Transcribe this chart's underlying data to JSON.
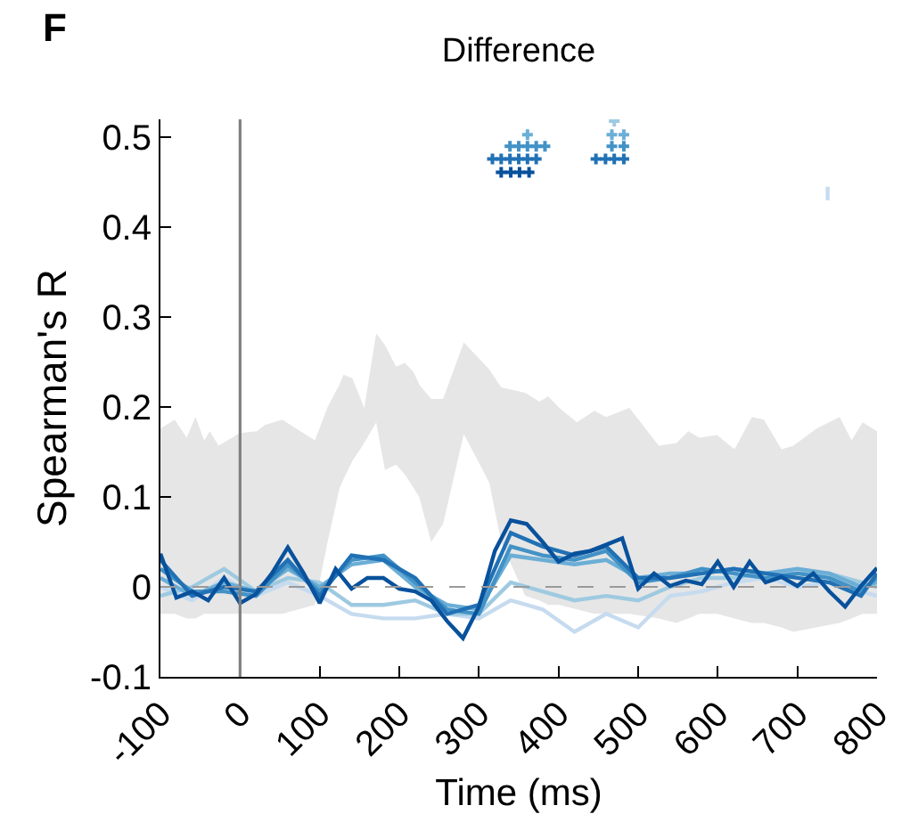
{
  "chart_data": {
    "type": "line",
    "title": "Difference",
    "xlabel": "Time (ms)",
    "ylabel": "Spearman's R",
    "annotations": [
      "F"
    ],
    "xlim": [
      -100,
      800
    ],
    "xticks": [
      -100,
      0,
      100,
      200,
      300,
      400,
      500,
      600,
      700,
      800
    ],
    "ylim": [
      -0.1,
      0.52
    ],
    "yticks": [
      -0.1,
      0,
      0.1,
      0.2,
      0.3,
      0.4,
      0.5
    ],
    "grid": false,
    "line_style": "solid",
    "ref_lines": [
      {
        "axis": "x",
        "value": 0,
        "color": "#808080",
        "line_style": "solid"
      },
      {
        "axis": "y",
        "value": 0,
        "color": "#9a9a9a",
        "line_style": "dashed"
      }
    ],
    "series": [
      {
        "type": "line",
        "color": "#e6e6e6",
        "values": [
          null,
          null,
          null,
          null,
          null,
          null,
          null,
          null,
          null,
          null,
          null,
          null,
          null,
          null,
          null,
          null,
          null,
          null,
          null,
          null,
          null,
          null,
          null,
          null,
          null,
          null,
          null,
          null,
          null,
          null,
          null,
          null,
          null,
          null,
          null,
          null,
          null,
          null,
          null,
          null,
          null,
          null,
          null,
          null,
          null,
          null,
          null,
          null,
          null,
          null,
          null,
          null
        ],
        "x": [
          -100,
          -82,
          -67,
          -56,
          -45,
          -38,
          -27,
          -1,
          21,
          31,
          53,
          94,
          110,
          125,
          130,
          141,
          156,
          171,
          182,
          196,
          207,
          218,
          225,
          240,
          255,
          281,
          299,
          313,
          328,
          358,
          376,
          387,
          401,
          423,
          445,
          460,
          489,
          526,
          548,
          563,
          577,
          599,
          621,
          643,
          658,
          680,
          695,
          724,
          753,
          768,
          782,
          800
        ],
        "upper": [
          0.176,
          0.186,
          0.166,
          0.189,
          0.163,
          0.173,
          0.157,
          0.171,
          0.173,
          0.18,
          0.186,
          0.163,
          0.2,
          0.225,
          0.236,
          0.232,
          0.199,
          0.282,
          0.269,
          0.245,
          0.249,
          0.239,
          0.225,
          0.209,
          0.209,
          0.272,
          0.255,
          0.242,
          0.222,
          0.216,
          0.206,
          0.212,
          0.199,
          0.183,
          0.196,
          0.189,
          0.199,
          0.157,
          0.16,
          0.173,
          0.166,
          0.169,
          0.153,
          0.189,
          0.186,
          0.153,
          0.157,
          0.176,
          0.189,
          0.163,
          0.183,
          0.173
        ],
        "lower": [
          -0.03,
          -0.03,
          -0.035,
          -0.035,
          -0.03,
          -0.03,
          -0.03,
          -0.03,
          -0.03,
          -0.03,
          -0.03,
          -0.02,
          0.05,
          0.11,
          0.12,
          0.14,
          0.16,
          0.183,
          0.13,
          0.136,
          0.125,
          0.11,
          0.1,
          0.05,
          0.07,
          0.17,
          0.14,
          0.116,
          0.05,
          -0.01,
          -0.015,
          -0.02,
          -0.02,
          -0.025,
          -0.03,
          -0.03,
          -0.03,
          -0.035,
          -0.04,
          -0.035,
          -0.03,
          -0.03,
          -0.035,
          -0.04,
          -0.04,
          -0.045,
          -0.05,
          -0.045,
          -0.04,
          -0.035,
          -0.03,
          -0.03
        ]
      },
      {
        "type": "line",
        "color": "#c6dbef",
        "x": [
          -100,
          -60,
          -20,
          20,
          60,
          100,
          140,
          180,
          220,
          260,
          300,
          340,
          380,
          420,
          460,
          500,
          540,
          580,
          620,
          660,
          700,
          740,
          780,
          800
        ],
        "values": [
          0.0,
          -0.015,
          0.01,
          -0.01,
          0.005,
          -0.01,
          -0.03,
          -0.035,
          -0.035,
          -0.03,
          -0.035,
          -0.015,
          -0.025,
          -0.05,
          -0.03,
          -0.045,
          -0.01,
          -0.005,
          0.005,
          0.01,
          0.0,
          0.005,
          -0.005,
          -0.01
        ]
      },
      {
        "type": "line",
        "color": "#9ecae1",
        "x": [
          -100,
          -60,
          -20,
          20,
          60,
          100,
          140,
          180,
          220,
          260,
          300,
          340,
          380,
          420,
          460,
          500,
          540,
          580,
          620,
          660,
          700,
          740,
          780,
          800
        ],
        "values": [
          -0.01,
          0.0,
          0.02,
          -0.005,
          0.01,
          0.005,
          -0.02,
          -0.02,
          -0.015,
          -0.03,
          -0.03,
          0.005,
          -0.005,
          -0.015,
          -0.01,
          -0.015,
          0.0,
          0.01,
          0.01,
          0.015,
          0.015,
          0.015,
          0.005,
          0.0
        ]
      },
      {
        "type": "line",
        "color": "#6baed6",
        "x": [
          -100,
          -60,
          -20,
          20,
          60,
          100,
          140,
          180,
          220,
          260,
          300,
          340,
          380,
          420,
          460,
          500,
          540,
          580,
          620,
          660,
          700,
          740,
          780,
          800
        ],
        "values": [
          0.01,
          -0.01,
          0.005,
          -0.005,
          0.02,
          0.0,
          0.025,
          0.03,
          0.0,
          -0.02,
          -0.025,
          0.035,
          0.03,
          0.025,
          0.03,
          0.01,
          0.015,
          0.015,
          0.02,
          0.015,
          0.02,
          0.015,
          0.0,
          0.005
        ]
      },
      {
        "type": "line",
        "color": "#4292c6",
        "x": [
          -100,
          -60,
          -20,
          20,
          60,
          100,
          140,
          180,
          220,
          260,
          300,
          340,
          380,
          420,
          460,
          500,
          540,
          580,
          620,
          660,
          700,
          740,
          780,
          800
        ],
        "values": [
          0.02,
          -0.005,
          -0.005,
          -0.01,
          0.025,
          -0.005,
          0.03,
          0.035,
          0.005,
          -0.025,
          -0.03,
          0.045,
          0.035,
          0.03,
          0.04,
          0.005,
          0.01,
          0.02,
          0.015,
          0.01,
          0.015,
          0.01,
          -0.005,
          0.01
        ]
      },
      {
        "type": "line",
        "color": "#2171b5",
        "x": [
          -100,
          -60,
          -20,
          20,
          60,
          100,
          140,
          180,
          220,
          260,
          300,
          340,
          380,
          420,
          460,
          500,
          540,
          580,
          620,
          660,
          700,
          740,
          780,
          800
        ],
        "values": [
          0.03,
          -0.01,
          0.0,
          -0.005,
          0.03,
          -0.01,
          0.035,
          0.03,
          0.01,
          -0.03,
          -0.02,
          0.06,
          0.045,
          0.035,
          0.045,
          0.01,
          0.01,
          0.015,
          0.02,
          0.015,
          0.01,
          0.005,
          -0.01,
          0.015
        ]
      },
      {
        "type": "line",
        "color": "#08519c",
        "x": [
          -100,
          -80,
          -60,
          -40,
          -20,
          0,
          20,
          40,
          60,
          80,
          100,
          120,
          140,
          160,
          180,
          200,
          220,
          240,
          260,
          280,
          300,
          320,
          340,
          360,
          380,
          400,
          420,
          440,
          460,
          480,
          500,
          520,
          540,
          560,
          580,
          600,
          620,
          640,
          660,
          680,
          700,
          720,
          740,
          760,
          780,
          800
        ],
        "values": [
          0.037,
          -0.012,
          -0.005,
          -0.015,
          0.01,
          -0.018,
          -0.008,
          0.015,
          0.044,
          0.015,
          -0.018,
          0.02,
          -0.002,
          0.01,
          0.01,
          -0.002,
          -0.005,
          -0.015,
          -0.038,
          -0.057,
          -0.022,
          0.04,
          0.074,
          0.07,
          0.05,
          0.028,
          0.037,
          0.04,
          0.047,
          0.054,
          -0.002,
          0.015,
          0.001,
          0.007,
          0.003,
          0.028,
          0.0,
          0.028,
          0.005,
          0.011,
          0.001,
          0.015,
          -0.005,
          -0.022,
          0.001,
          0.021
        ]
      },
      {
        "type": "scatter",
        "marker": "cross",
        "color": "#08519c",
        "x": [
          328,
          340,
          351,
          363
        ],
        "values": [
          0.461,
          0.461,
          0.461,
          0.461
        ]
      },
      {
        "type": "scatter",
        "marker": "cross",
        "color": "#2171b5",
        "x": [
          317,
          328,
          339,
          350,
          361,
          372,
          447,
          459,
          470,
          482
        ],
        "values": [
          0.476,
          0.476,
          0.476,
          0.476,
          0.476,
          0.476,
          0.476,
          0.476,
          0.476,
          0.476
        ]
      },
      {
        "type": "scatter",
        "marker": "cross",
        "color": "#4292c6",
        "x": [
          339,
          350,
          361,
          372,
          383,
          467,
          482
        ],
        "values": [
          0.49,
          0.49,
          0.49,
          0.49,
          0.49,
          0.49,
          0.49
        ]
      },
      {
        "type": "scatter",
        "marker": "cross",
        "color": "#6baed6",
        "x": [
          361,
          467,
          482
        ],
        "values": [
          0.503,
          0.503,
          0.503
        ]
      },
      {
        "type": "scatter",
        "marker": "cross",
        "color": "#9ecae1",
        "x": [
          470
        ],
        "values": [
          0.518
        ]
      },
      {
        "type": "line",
        "color": "#c6dbef",
        "x": [
          738,
          738
        ],
        "values": [
          0.43,
          0.445
        ]
      }
    ]
  }
}
